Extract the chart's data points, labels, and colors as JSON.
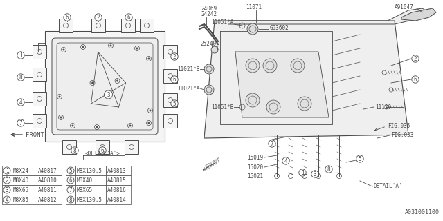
{
  "bg_color": "#ffffff",
  "line_color": "#4a4a4a",
  "part_number": "A031001100",
  "front_text": "FRONT",
  "detail_a_text": "<DETAIL'A'>",
  "table_left": {
    "rows": [
      [
        "1",
        "M8X24",
        "A40817"
      ],
      [
        "2",
        "M8X40",
        "A40810"
      ],
      [
        "3",
        "M8X65",
        "A40811"
      ],
      [
        "4",
        "M8X85",
        "A40812"
      ]
    ]
  },
  "table_right": {
    "rows": [
      [
        "5",
        "M8X130.5",
        "A40813"
      ],
      [
        "6",
        "M8X40",
        "A40815"
      ],
      [
        "7",
        "M8X65",
        "A40816"
      ],
      [
        "8",
        "M8X130.5",
        "A40814"
      ]
    ]
  },
  "font_size": 5.5
}
